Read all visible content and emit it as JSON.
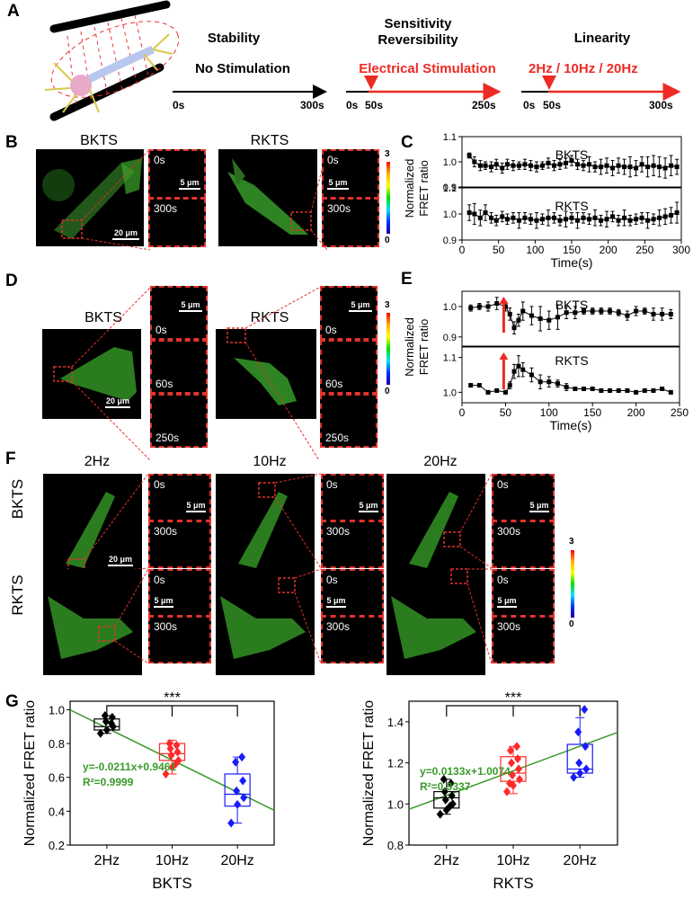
{
  "panels": {
    "A": "A",
    "B": "B",
    "C": "C",
    "D": "D",
    "E": "E",
    "F": "F",
    "G": "G"
  },
  "panel_a": {
    "stability_title": "Stability",
    "stability_sub": "No Stimulation",
    "stability_t0": "0s",
    "stability_t1": "300s",
    "sens_title": "Sensitivity\nReversibility",
    "sens_sub": "Electrical Stimulation",
    "sens_t0": "0s",
    "sens_t1": "50s",
    "sens_t2": "250s",
    "lin_title": "Linearity",
    "lin_sub": "2Hz / 10Hz / 20Hz",
    "lin_t0": "0s",
    "lin_t1": "50s",
    "lin_t2": "300s",
    "accent": "#ee2a24"
  },
  "panel_b": {
    "left_title": "BKTS",
    "right_title": "RKTS",
    "inset_times": [
      "0s",
      "300s"
    ],
    "scale_big": "20 μm",
    "scale_small": "5 μm",
    "cbar_max": "3",
    "cbar_min": "0"
  },
  "panel_d": {
    "left_title": "BKTS",
    "right_title": "RKTS",
    "inset_times": [
      "0s",
      "60s",
      "250s"
    ],
    "scale_big": "20 μm",
    "scale_small": "5 μm",
    "cbar_max": "3",
    "cbar_min": "0"
  },
  "panel_f": {
    "col_titles": [
      "2Hz",
      "10Hz",
      "20Hz"
    ],
    "row_titles": [
      "BKTS",
      "RKTS"
    ],
    "inset_times": [
      "0s",
      "300s"
    ],
    "scale_big": "20 μm",
    "scale_small": "5 μm",
    "cbar_max": "3",
    "cbar_min": "0"
  },
  "chart_data": [
    {
      "panel": "C",
      "type": "line",
      "ylabel": "Normalized\nFRET ratio",
      "xlabel": "Time(s)",
      "xlim": [
        0,
        300
      ],
      "xticks": [
        0,
        50,
        100,
        150,
        200,
        250,
        300
      ],
      "subplots": [
        {
          "name": "BKTS",
          "ylim": [
            0.9,
            1.1
          ],
          "yticks": [
            0.9,
            1.0,
            1.1
          ],
          "x": [
            10,
            17,
            25,
            32,
            40,
            47,
            55,
            62,
            70,
            78,
            86,
            94,
            102,
            110,
            118,
            126,
            134,
            142,
            150,
            158,
            166,
            174,
            182,
            190,
            198,
            206,
            214,
            222,
            230,
            238,
            246,
            254,
            262,
            270,
            278,
            286,
            294
          ],
          "y": [
            1.025,
            1.0,
            0.985,
            0.985,
            0.98,
            0.99,
            0.975,
            0.99,
            0.985,
            0.985,
            0.99,
            0.985,
            0.98,
            0.985,
            0.995,
            0.985,
            0.99,
            0.995,
            1.005,
            0.99,
            0.985,
            0.99,
            0.98,
            0.98,
            0.985,
            0.975,
            0.985,
            0.98,
            0.98,
            0.975,
            0.99,
            0.98,
            0.985,
            0.98,
            0.975,
            0.985,
            0.98
          ],
          "err": [
            0.01,
            0.02,
            0.02,
            0.015,
            0.02,
            0.02,
            0.02,
            0.02,
            0.02,
            0.015,
            0.02,
            0.02,
            0.02,
            0.015,
            0.02,
            0.02,
            0.02,
            0.02,
            0.02,
            0.02,
            0.02,
            0.03,
            0.02,
            0.03,
            0.03,
            0.03,
            0.03,
            0.03,
            0.04,
            0.03,
            0.03,
            0.04,
            0.04,
            0.04,
            0.04,
            0.04,
            0.03
          ]
        },
        {
          "name": "RKTS",
          "ylim": [
            0.9,
            1.1
          ],
          "yticks": [
            0.9,
            1.0,
            1.1
          ],
          "x": [
            10,
            17,
            25,
            32,
            40,
            47,
            55,
            62,
            70,
            78,
            86,
            94,
            102,
            110,
            118,
            126,
            134,
            142,
            150,
            158,
            166,
            174,
            182,
            190,
            198,
            206,
            214,
            222,
            230,
            238,
            246,
            254,
            262,
            270,
            278,
            286,
            294
          ],
          "y": [
            1.005,
            1.0,
            0.985,
            1.005,
            0.985,
            0.975,
            0.99,
            0.98,
            0.985,
            0.975,
            0.985,
            0.98,
            0.975,
            0.98,
            0.985,
            0.985,
            0.975,
            0.98,
            0.985,
            0.975,
            0.985,
            0.98,
            0.985,
            0.975,
            0.98,
            0.99,
            0.975,
            0.985,
            0.975,
            0.98,
            0.985,
            0.975,
            0.98,
            0.985,
            0.99,
            0.995,
            1.005
          ],
          "err": [
            0.03,
            0.04,
            0.03,
            0.03,
            0.02,
            0.02,
            0.02,
            0.02,
            0.02,
            0.03,
            0.02,
            0.02,
            0.03,
            0.02,
            0.03,
            0.02,
            0.02,
            0.03,
            0.02,
            0.03,
            0.02,
            0.02,
            0.03,
            0.02,
            0.03,
            0.02,
            0.02,
            0.03,
            0.02,
            0.02,
            0.02,
            0.03,
            0.02,
            0.03,
            0.03,
            0.03,
            0.04
          ]
        }
      ]
    },
    {
      "panel": "E",
      "type": "line",
      "ylabel": "Normalized\nFRET ratio",
      "xlabel": "Time(s)",
      "xlim": [
        0,
        250
      ],
      "xticks": [
        0,
        50,
        100,
        150,
        200,
        250
      ],
      "stim_time": 50,
      "subplots": [
        {
          "name": "BKTS",
          "ylim": [
            0.87,
            1.05
          ],
          "yticks": [
            0.9,
            1.0
          ],
          "x": [
            10,
            20,
            30,
            40,
            50,
            55,
            60,
            65,
            70,
            80,
            90,
            100,
            110,
            120,
            130,
            140,
            150,
            160,
            170,
            180,
            190,
            200,
            210,
            220,
            230,
            240
          ],
          "y": [
            0.995,
            1.0,
            1.0,
            1.01,
            1.0,
            0.975,
            0.93,
            0.955,
            0.985,
            0.97,
            0.96,
            0.955,
            0.965,
            0.98,
            0.98,
            0.985,
            0.985,
            0.985,
            0.985,
            0.98,
            0.97,
            0.985,
            0.985,
            0.975,
            0.975,
            0.975
          ],
          "err": [
            0.01,
            0.01,
            0.015,
            0.02,
            0.015,
            0.02,
            0.02,
            0.02,
            0.03,
            0.03,
            0.04,
            0.03,
            0.04,
            0.02,
            0.02,
            0.01,
            0.01,
            0.01,
            0.01,
            0.01,
            0.015,
            0.015,
            0.01,
            0.02,
            0.02,
            0.015
          ]
        },
        {
          "name": "RKTS",
          "ylim": [
            0.97,
            1.13
          ],
          "yticks": [
            1.0,
            1.1
          ],
          "x": [
            10,
            20,
            30,
            40,
            50,
            55,
            60,
            65,
            70,
            80,
            90,
            100,
            110,
            120,
            130,
            140,
            150,
            160,
            170,
            180,
            190,
            200,
            210,
            220,
            230,
            240
          ],
          "y": [
            1.02,
            1.02,
            1.0,
            1.005,
            1.0,
            1.02,
            1.06,
            1.075,
            1.065,
            1.05,
            1.03,
            1.03,
            1.025,
            1.015,
            1.01,
            1.01,
            1.01,
            1.005,
            1.005,
            1.005,
            1.005,
            1.0,
            1.005,
            1.005,
            1.01,
            1.0
          ],
          "err": [
            0.005,
            0.005,
            0.005,
            0.005,
            0.005,
            0.01,
            0.02,
            0.03,
            0.02,
            0.02,
            0.02,
            0.015,
            0.01,
            0.01,
            0.005,
            0.005,
            0.005,
            0.005,
            0.005,
            0.005,
            0.005,
            0.005,
            0.005,
            0.005,
            0.005,
            0.005
          ]
        }
      ]
    },
    {
      "panel": "G-left",
      "type": "box",
      "title": "",
      "xlabel": "BKTS",
      "ylabel": "Normalized FRET ratio",
      "categories": [
        "2Hz",
        "10Hz",
        "20Hz"
      ],
      "ylim": [
        0.2,
        1.05
      ],
      "yticks": [
        0.2,
        0.4,
        0.6,
        0.8,
        1.0
      ],
      "significance": "***",
      "colors": [
        "#000000",
        "#ff2a2a",
        "#1a1aff"
      ],
      "boxes": [
        {
          "q1": 0.88,
          "median": 0.9,
          "q3": 0.945,
          "min": 0.86,
          "max": 0.965
        },
        {
          "q1": 0.7,
          "median": 0.74,
          "q3": 0.8,
          "min": 0.62,
          "max": 0.82
        },
        {
          "q1": 0.43,
          "median": 0.5,
          "q3": 0.62,
          "min": 0.33,
          "max": 0.72
        }
      ],
      "points": [
        [
          0.86,
          0.88,
          0.9,
          0.93,
          0.955,
          0.965,
          0.92
        ],
        [
          0.62,
          0.66,
          0.7,
          0.73,
          0.75,
          0.77,
          0.79,
          0.8,
          0.68
        ],
        [
          0.33,
          0.44,
          0.48,
          0.52,
          0.58,
          0.69,
          0.72
        ]
      ],
      "fit": {
        "slope": -0.0211,
        "intercept": 0.9461,
        "equation": "y=-0.0211x+0.9461",
        "r2": "R²=0.9999",
        "color": "#3a9a2a"
      }
    },
    {
      "panel": "G-right",
      "type": "box",
      "title": "",
      "xlabel": "RKTS",
      "ylabel": "Normalized FRET ratio",
      "categories": [
        "2Hz",
        "10Hz",
        "20Hz"
      ],
      "ylim": [
        0.8,
        1.5
      ],
      "yticks": [
        0.8,
        1.0,
        1.2,
        1.4
      ],
      "significance": "***",
      "colors": [
        "#000000",
        "#ff2a2a",
        "#1a1aff"
      ],
      "boxes": [
        {
          "q1": 0.98,
          "median": 1.03,
          "q3": 1.06,
          "min": 0.95,
          "max": 1.12
        },
        {
          "q1": 1.11,
          "median": 1.15,
          "q3": 1.23,
          "min": 1.05,
          "max": 1.28
        },
        {
          "q1": 1.15,
          "median": 1.17,
          "q3": 1.29,
          "min": 1.13,
          "max": 1.42
        }
      ],
      "points": [
        [
          0.95,
          0.97,
          1.0,
          1.02,
          1.04,
          1.06,
          1.1,
          1.12,
          0.99
        ],
        [
          1.06,
          1.09,
          1.12,
          1.14,
          1.17,
          1.2,
          1.22,
          1.26,
          1.28,
          1.1
        ],
        [
          1.13,
          1.15,
          1.17,
          1.2,
          1.28,
          1.35,
          1.46
        ]
      ],
      "fit": {
        "slope": 0.0133,
        "intercept": 1.0074,
        "equation": "y=0.0133x+1.0074",
        "r2": "R²=0.9337",
        "color": "#3a9a2a"
      }
    }
  ]
}
